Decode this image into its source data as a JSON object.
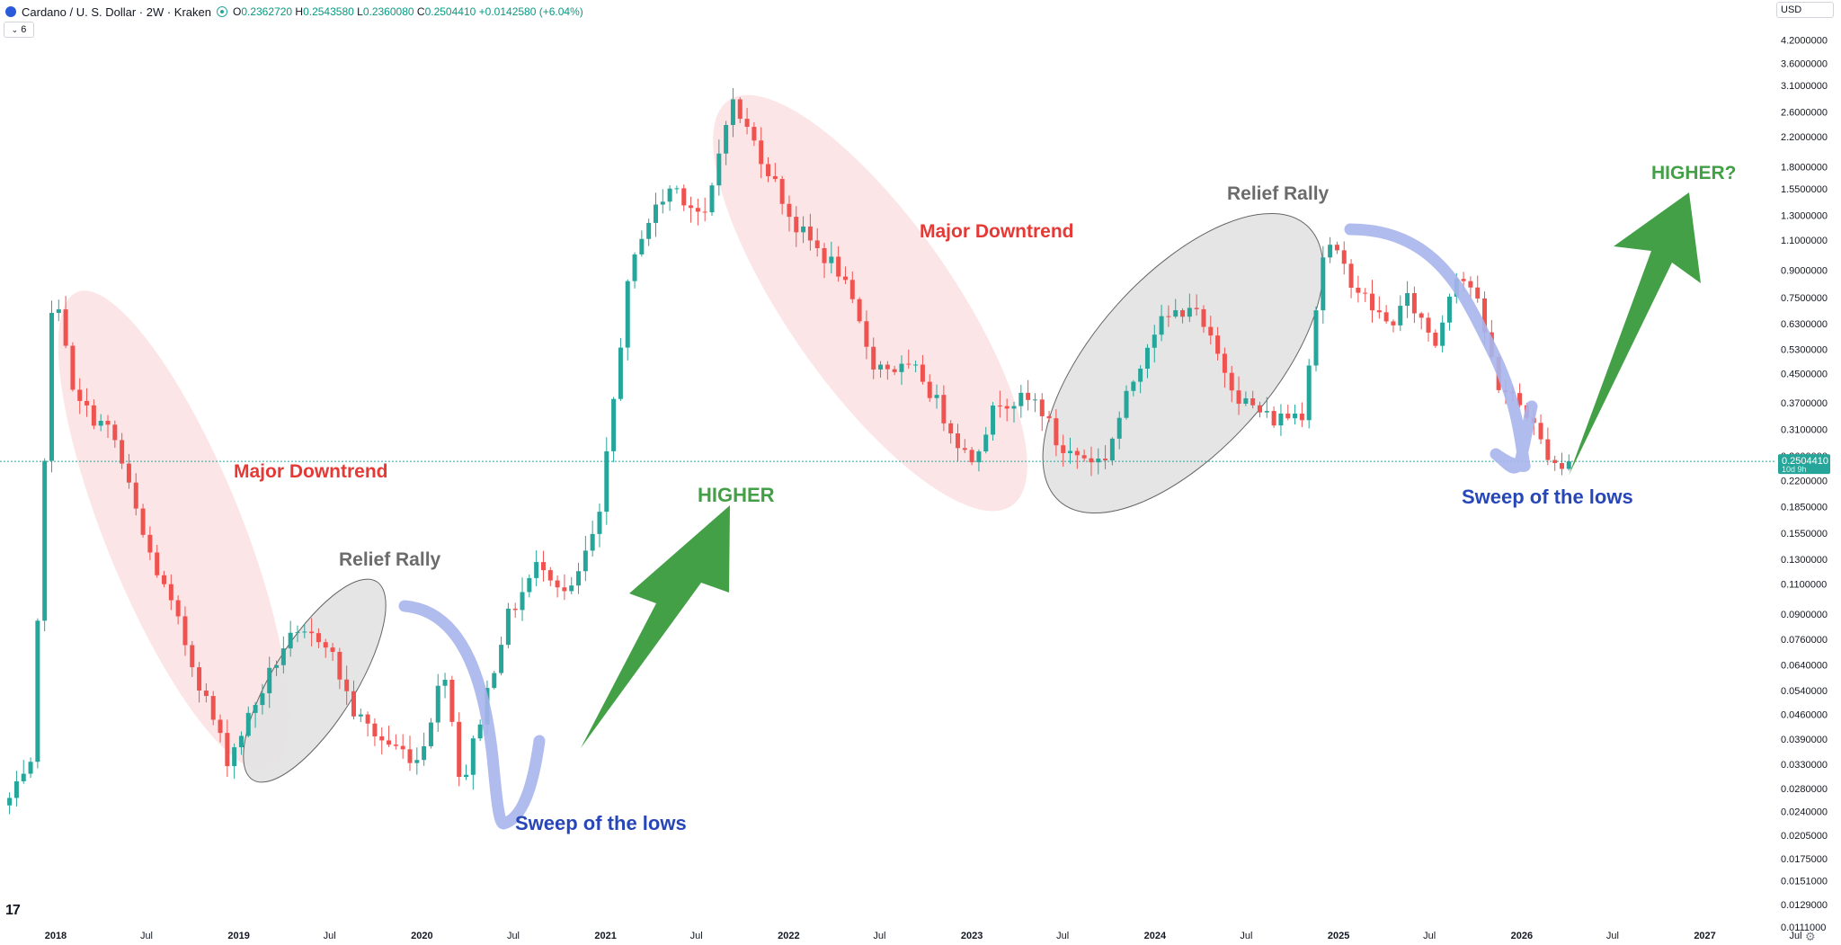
{
  "header": {
    "symbol": "Cardano / U. S. Dollar · 2W · Kraken",
    "o_label": "O",
    "o_value": "0.2362720",
    "h_label": "H",
    "h_value": "0.2543580",
    "l_label": "L",
    "l_value": "0.2360080",
    "c_label": "C",
    "c_value": "0.2504410",
    "change": "+0.0142580 (+6.04%)",
    "indicator_count": "6"
  },
  "currency": "USD",
  "price_badge": {
    "value": "0.2504410",
    "countdown": "10d 9h"
  },
  "colors": {
    "up": "#26a69a",
    "down": "#ef5350",
    "downtrend_fill": "#fbe0e2",
    "relief_fill": "#e3e3e3",
    "sweep_stroke": "#a9b5ec",
    "arrow": "#43a047",
    "downtrend_text": "#e53935",
    "relief_text": "#6b6b6b",
    "higher_text": "#43a047",
    "sweep_text": "#2747b8"
  },
  "icons": {
    "brand": "tradingview-logo-icon",
    "settings": "gear-icon"
  },
  "chart_data": {
    "type": "candlestick",
    "title": "Cardano / U. S. Dollar · 2W · Kraken",
    "y_scale": "log",
    "ylim": [
      0.0105,
      5.3
    ],
    "xlim": [
      "2017-09-12",
      "2027-09-15"
    ],
    "last_price": 0.250441,
    "y_ticks": [
      4.2,
      3.6,
      3.1,
      2.6,
      2.2,
      1.8,
      1.55,
      1.3,
      1.1,
      0.9,
      0.75,
      0.63,
      0.53,
      0.45,
      0.37,
      0.31,
      0.26,
      0.22,
      0.185,
      0.155,
      0.13,
      0.11,
      0.09,
      0.076,
      0.064,
      0.054,
      0.046,
      0.039,
      0.033,
      0.028,
      0.024,
      0.0205,
      0.0175,
      0.0151,
      0.0129,
      0.0111
    ],
    "y_tick_labels": [
      "4.2000000",
      "3.6000000",
      "3.1000000",
      "2.6000000",
      "2.2000000",
      "1.8000000",
      "1.5500000",
      "1.3000000",
      "1.1000000",
      "0.9000000",
      "0.7500000",
      "0.6300000",
      "0.5300000",
      "0.4500000",
      "0.3700000",
      "0.3100000",
      "0.2600000",
      "0.2200000",
      "0.1850000",
      "0.1550000",
      "0.1300000",
      "0.1100000",
      "0.0900000",
      "0.0760000",
      "0.0640000",
      "0.0540000",
      "0.0460000",
      "0.0390000",
      "0.0330000",
      "0.0280000",
      "0.0240000",
      "0.0205000",
      "0.0175000",
      "0.0151000",
      "0.0129000",
      "0.0111000"
    ],
    "x_ticks": [
      {
        "label": "2018",
        "date": "2018-01-01",
        "bold": true
      },
      {
        "label": "Jul",
        "date": "2018-07-01",
        "bold": false
      },
      {
        "label": "2019",
        "date": "2019-01-01",
        "bold": true
      },
      {
        "label": "Jul",
        "date": "2019-07-01",
        "bold": false
      },
      {
        "label": "2020",
        "date": "2020-01-01",
        "bold": true
      },
      {
        "label": "Jul",
        "date": "2020-07-01",
        "bold": false
      },
      {
        "label": "2021",
        "date": "2021-01-01",
        "bold": true
      },
      {
        "label": "Jul",
        "date": "2021-07-01",
        "bold": false
      },
      {
        "label": "2022",
        "date": "2022-01-01",
        "bold": true
      },
      {
        "label": "Jul",
        "date": "2022-07-01",
        "bold": false
      },
      {
        "label": "2023",
        "date": "2023-01-01",
        "bold": true
      },
      {
        "label": "Jul",
        "date": "2023-07-01",
        "bold": false
      },
      {
        "label": "2024",
        "date": "2024-01-01",
        "bold": true
      },
      {
        "label": "Jul",
        "date": "2024-07-01",
        "bold": false
      },
      {
        "label": "2025",
        "date": "2025-01-01",
        "bold": true
      },
      {
        "label": "Jul",
        "date": "2025-07-01",
        "bold": false
      },
      {
        "label": "2026",
        "date": "2026-01-01",
        "bold": true
      },
      {
        "label": "Jul",
        "date": "2026-07-01",
        "bold": false
      },
      {
        "label": "2027",
        "date": "2027-01-01",
        "bold": true
      },
      {
        "label": "Jul",
        "date": "2027-07-01",
        "bold": false
      }
    ],
    "first_candle_date": "2017-10-01",
    "candle_interval_days": 14,
    "key_points": [
      {
        "date": "2017-10-01",
        "close": 0.026
      },
      {
        "date": "2017-11-15",
        "close": 0.032
      },
      {
        "date": "2017-12-20",
        "close": 0.62
      },
      {
        "date": "2018-01-10",
        "close": 0.75
      },
      {
        "date": "2018-02-05",
        "close": 0.38
      },
      {
        "date": "2018-04-25",
        "close": 0.3
      },
      {
        "date": "2018-06-25",
        "close": 0.15
      },
      {
        "date": "2018-09-01",
        "close": 0.085
      },
      {
        "date": "2018-12-10",
        "close": 0.034
      },
      {
        "date": "2019-04-05",
        "close": 0.075
      },
      {
        "date": "2019-06-20",
        "close": 0.078
      },
      {
        "date": "2019-08-20",
        "close": 0.046
      },
      {
        "date": "2019-10-10",
        "close": 0.039
      },
      {
        "date": "2019-12-25",
        "close": 0.034
      },
      {
        "date": "2020-02-15",
        "close": 0.063
      },
      {
        "date": "2020-03-20",
        "close": 0.028
      },
      {
        "date": "2020-06-15",
        "close": 0.085
      },
      {
        "date": "2020-08-25",
        "close": 0.13
      },
      {
        "date": "2020-10-20",
        "close": 0.1
      },
      {
        "date": "2020-12-20",
        "close": 0.17
      },
      {
        "date": "2021-02-10",
        "close": 0.75
      },
      {
        "date": "2021-03-15",
        "close": 1.18
      },
      {
        "date": "2021-05-15",
        "close": 1.6
      },
      {
        "date": "2021-07-20",
        "close": 1.25
      },
      {
        "date": "2021-09-05",
        "close": 2.85
      },
      {
        "date": "2021-11-15",
        "close": 1.85
      },
      {
        "date": "2022-01-15",
        "close": 1.2
      },
      {
        "date": "2022-04-10",
        "close": 0.9
      },
      {
        "date": "2022-06-20",
        "close": 0.48
      },
      {
        "date": "2022-09-20",
        "close": 0.45
      },
      {
        "date": "2022-12-28",
        "close": 0.25
      },
      {
        "date": "2023-02-25",
        "close": 0.38
      },
      {
        "date": "2023-05-15",
        "close": 0.37
      },
      {
        "date": "2023-06-25",
        "close": 0.27
      },
      {
        "date": "2023-09-20",
        "close": 0.25
      },
      {
        "date": "2023-12-25",
        "close": 0.6
      },
      {
        "date": "2024-03-10",
        "close": 0.72
      },
      {
        "date": "2024-06-20",
        "close": 0.38
      },
      {
        "date": "2024-08-20",
        "close": 0.33
      },
      {
        "date": "2024-10-20",
        "close": 0.35
      },
      {
        "date": "2024-12-05",
        "close": 1.1
      },
      {
        "date": "2025-02-20",
        "close": 0.75
      },
      {
        "date": "2025-04-10",
        "close": 0.62
      },
      {
        "date": "2025-05-20",
        "close": 0.74
      },
      {
        "date": "2025-07-15",
        "close": 0.55
      },
      {
        "date": "2025-08-20",
        "close": 0.9
      },
      {
        "date": "2025-09-25",
        "close": 0.8
      },
      {
        "date": "2025-11-15",
        "close": 0.42
      },
      {
        "date": "2026-01-10",
        "close": 0.35
      },
      {
        "date": "2026-02-10",
        "close": 0.28
      },
      {
        "date": "2026-03-20",
        "close": 0.24
      },
      {
        "date": "2026-04-05",
        "close": 0.2504
      }
    ],
    "annotations": {
      "downtrend_1": {
        "label": "Major Downtrend"
      },
      "downtrend_2": {
        "label": "Major Downtrend"
      },
      "relief_1": {
        "label": "Relief Rally"
      },
      "relief_2": {
        "label": "Relief Rally"
      },
      "higher_1": {
        "label": "HIGHER"
      },
      "higher_2": {
        "label": "HIGHER?"
      },
      "sweep_1": {
        "label": "Sweep of the lows"
      },
      "sweep_2": {
        "label": "Sweep of the lows"
      }
    }
  }
}
